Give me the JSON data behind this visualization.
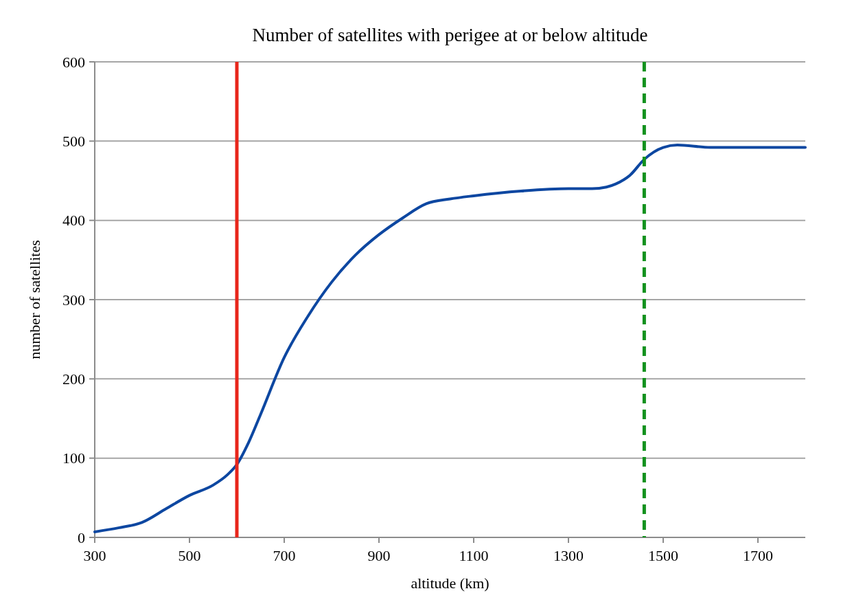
{
  "chart_data": {
    "type": "line",
    "title": "Number of satellites with perigee at or below altitude",
    "xlabel": "altitude (km)",
    "ylabel": "number of satellites",
    "x": [
      300,
      350,
      400,
      450,
      500,
      550,
      580,
      600,
      625,
      650,
      700,
      750,
      800,
      850,
      900,
      950,
      1000,
      1050,
      1100,
      1200,
      1300,
      1350,
      1380,
      1400,
      1430,
      1460,
      1500,
      1530,
      1600,
      1700,
      1800
    ],
    "series": [
      {
        "color": "#0d47a1",
        "values": [
          7,
          12,
          19,
          36,
          53,
          66,
          79,
          92,
          120,
          155,
          227,
          279,
          322,
          356,
          382,
          403,
          421,
          427,
          431,
          437,
          440,
          440,
          442,
          446,
          457,
          477,
          492,
          495,
          492,
          492,
          492
        ]
      }
    ],
    "xlim": [
      300,
      1800
    ],
    "xticks": [
      300,
      500,
      700,
      900,
      1100,
      1300,
      1500,
      1700
    ],
    "ylim": [
      0,
      600
    ],
    "yticks": [
      0,
      100,
      200,
      300,
      400,
      500,
      600
    ],
    "grid": "y",
    "marker": "none",
    "line_style": "solid",
    "ref_lines": [
      {
        "axis": "x",
        "value": 600,
        "color": "#e8261b",
        "line_style": "solid"
      },
      {
        "axis": "x",
        "value": 1460,
        "color": "#13921e",
        "line_style": "dashed"
      }
    ]
  }
}
